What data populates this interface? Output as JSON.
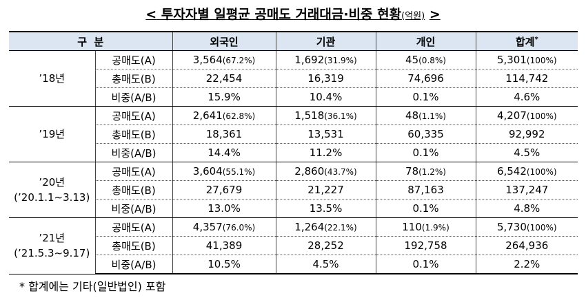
{
  "title": {
    "open": "<",
    "main": "투자자별 일평균 공매도 거래대금·비중 현황",
    "unit": "(억원)",
    "close": ">"
  },
  "table": {
    "header": {
      "label": "구  분",
      "columns": [
        "외국인",
        "기관",
        "개인",
        "합계"
      ],
      "total_mark": "*"
    },
    "groups": [
      {
        "label": [
          "’18년"
        ],
        "rows": [
          {
            "label": "공매도(A)",
            "cells": [
              [
                "3,564",
                "(67.2%)"
              ],
              [
                "1,692",
                "(31.9%)"
              ],
              [
                "45",
                "(0.8%)"
              ],
              [
                "5,301",
                "(100%)"
              ]
            ]
          },
          {
            "label": "총매도(B)",
            "cells": [
              [
                "22,454"
              ],
              [
                "16,319"
              ],
              [
                "74,696"
              ],
              [
                "114,742"
              ]
            ]
          },
          {
            "label": "비중(A/B)",
            "cells": [
              [
                "15.9%"
              ],
              [
                "10.4%"
              ],
              [
                "0.1%"
              ],
              [
                "4.6%"
              ]
            ]
          }
        ]
      },
      {
        "label": [
          "’19년"
        ],
        "rows": [
          {
            "label": "공매도(A)",
            "cells": [
              [
                "2,641",
                "(62.8%)"
              ],
              [
                "1,518",
                "(36.1%)"
              ],
              [
                "48",
                "(1.1%)"
              ],
              [
                "4,207",
                "(100%)"
              ]
            ]
          },
          {
            "label": "총매도(B)",
            "cells": [
              [
                "18,361"
              ],
              [
                "13,531"
              ],
              [
                "60,335"
              ],
              [
                "92,992"
              ]
            ]
          },
          {
            "label": "비중(A/B)",
            "cells": [
              [
                "14.4%"
              ],
              [
                "11.2%"
              ],
              [
                "0.1%"
              ],
              [
                "4.5%"
              ]
            ]
          }
        ]
      },
      {
        "label": [
          "’20년",
          "(’20.1.1∼3.13)"
        ],
        "rows": [
          {
            "label": "공매도(A)",
            "cells": [
              [
                "3,604",
                "(55.1%)"
              ],
              [
                "2,860",
                "(43.7%)"
              ],
              [
                "78",
                "(1.2%)"
              ],
              [
                "6,542",
                "(100%)"
              ]
            ]
          },
          {
            "label": "총매도(B)",
            "cells": [
              [
                "27,679"
              ],
              [
                "21,227"
              ],
              [
                "87,163"
              ],
              [
                "137,247"
              ]
            ]
          },
          {
            "label": "비중(A/B)",
            "cells": [
              [
                "13.0%"
              ],
              [
                "13.5%"
              ],
              [
                "0.1%"
              ],
              [
                "4.8%"
              ]
            ]
          }
        ]
      },
      {
        "label": [
          "’21년",
          "(’21.5.3∼9.17)"
        ],
        "rows": [
          {
            "label": "공매도(A)",
            "cells": [
              [
                "4,357",
                "(76.0%)"
              ],
              [
                "1,264",
                "(22.1%)"
              ],
              [
                "110",
                "(1.9%)"
              ],
              [
                "5,730",
                "(100%)"
              ]
            ]
          },
          {
            "label": "총매도(B)",
            "cells": [
              [
                "41,389"
              ],
              [
                "28,252"
              ],
              [
                "192,758"
              ],
              [
                "264,936"
              ]
            ]
          },
          {
            "label": "비중(A/B)",
            "cells": [
              [
                "10.5%"
              ],
              [
                "4.5%"
              ],
              [
                "0.1%"
              ],
              [
                "2.2%"
              ]
            ]
          }
        ]
      }
    ]
  },
  "footnote": "* 합계에는 기타(일반법인) 포함"
}
